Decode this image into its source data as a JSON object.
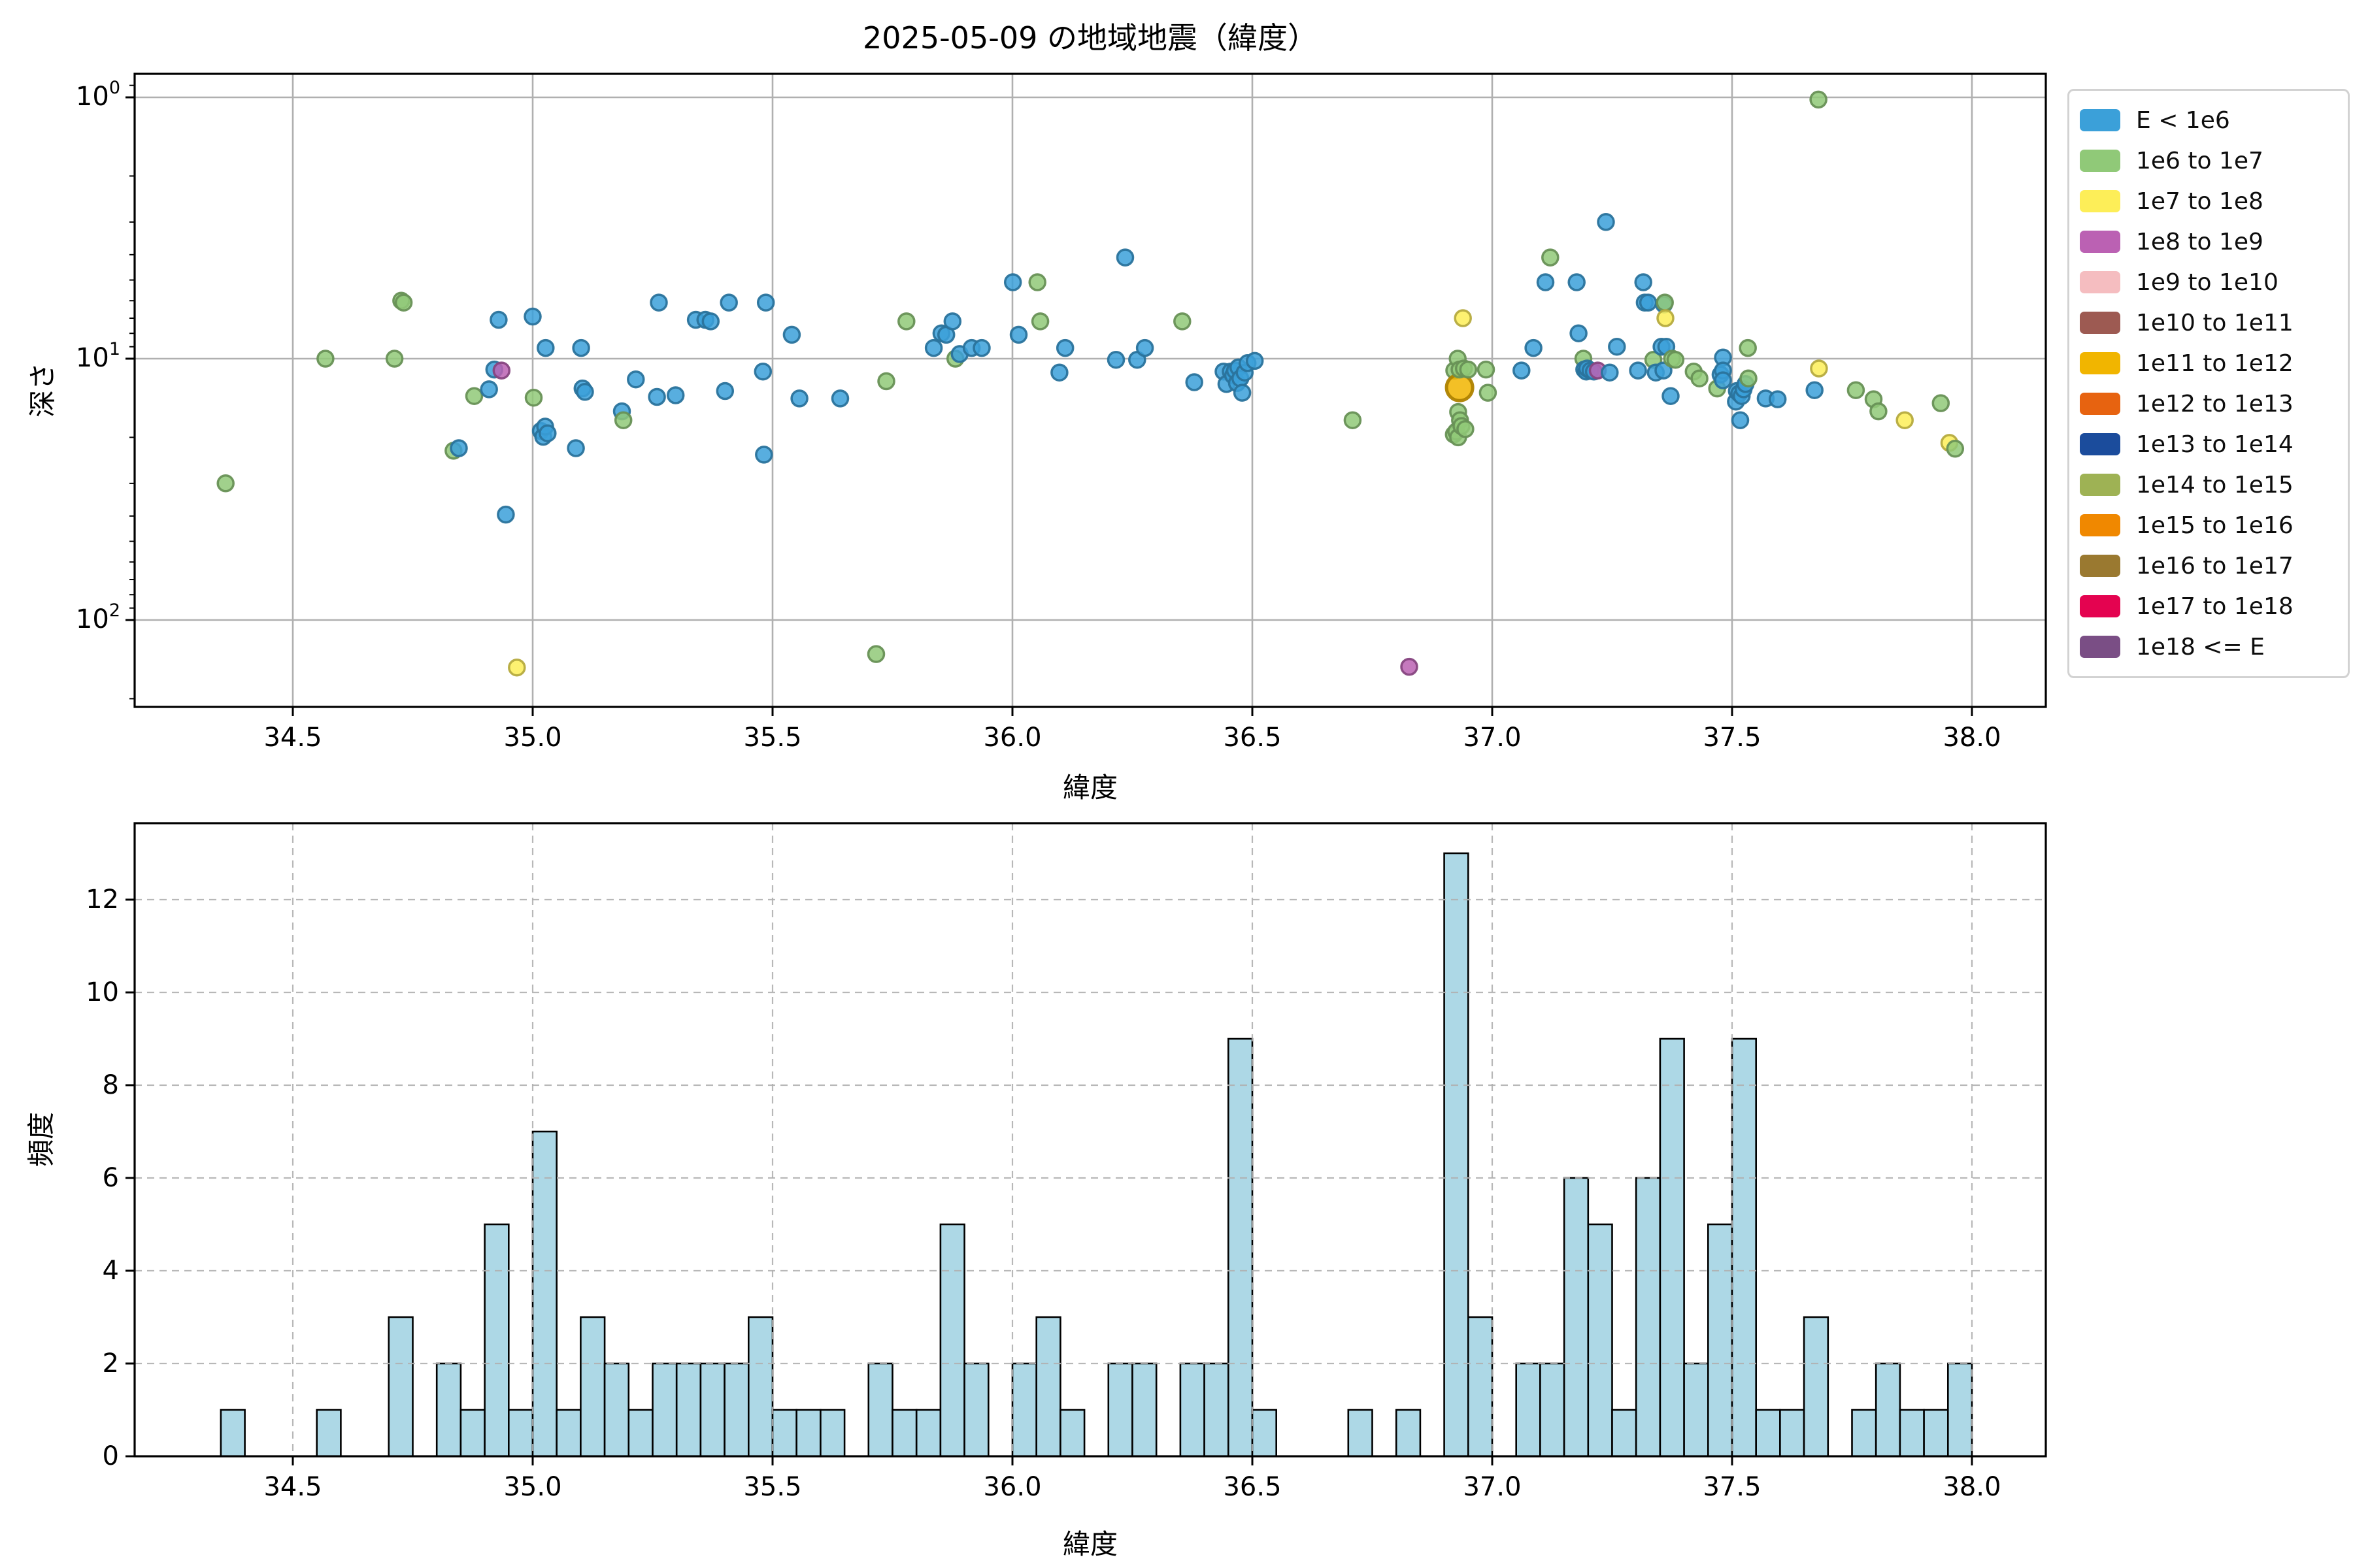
{
  "title": "2025-05-09 の地域地震（緯度）",
  "chart_data": [
    {
      "type": "scatter",
      "title": "2025-05-09 の地域地震（緯度）",
      "xlabel": "緯度",
      "ylabel": "深さ",
      "x_ticks": [
        34.5,
        35.0,
        35.5,
        36.0,
        36.5,
        37.0,
        37.5,
        38.0
      ],
      "xlim": [
        34.17,
        38.154
      ],
      "y_scale": "log",
      "y_inverted": true,
      "ylim": [
        0.813,
        215
      ],
      "y_ticks": [
        1,
        10,
        100
      ],
      "grid": "solid",
      "legend_position": "outside-upper-right",
      "legend": {
        "entries": [
          {
            "label": "E < 1e6",
            "color": "#3ba0d9"
          },
          {
            "label": "1e6 to 1e7",
            "color": "#90c978"
          },
          {
            "label": "1e7 to 1e8",
            "color": "#fdee58"
          },
          {
            "label": "1e8 to 1e9",
            "color": "#bb61b3"
          },
          {
            "label": "1e9 to 1e10",
            "color": "#f5bdc0"
          },
          {
            "label": "1e10 to 1e11",
            "color": "#9d5a52"
          },
          {
            "label": "1e11 to 1e12",
            "color": "#f1b500"
          },
          {
            "label": "1e12 to 1e13",
            "color": "#e76310"
          },
          {
            "label": "1e13 to 1e14",
            "color": "#1b4c9c"
          },
          {
            "label": "1e14 to 1e15",
            "color": "#9eb254"
          },
          {
            "label": "1e15 to 1e16",
            "color": "#f08800"
          },
          {
            "label": "1e16 to 1e17",
            "color": "#9a7930"
          },
          {
            "label": "1e17 to 1e18",
            "color": "#e40350"
          },
          {
            "label": "1e18 <= E",
            "color": "#7a4e85"
          }
        ]
      },
      "points_format": [
        "latitude",
        "depth_km",
        "energy_category_index"
      ],
      "points": [
        [
          34.36,
          30,
          1
        ],
        [
          34.568,
          10.0,
          1
        ],
        [
          34.712,
          10.0,
          1
        ],
        [
          34.726,
          6.0,
          1
        ],
        [
          34.731,
          6.1,
          1
        ],
        [
          34.835,
          22.5,
          1
        ],
        [
          34.846,
          22.0,
          0
        ],
        [
          34.878,
          13.9,
          1
        ],
        [
          34.909,
          13.1,
          0
        ],
        [
          34.92,
          11.0,
          0
        ],
        [
          34.935,
          11.1,
          3
        ],
        [
          34.929,
          7.1,
          0
        ],
        [
          34.944,
          39.5,
          0
        ],
        [
          34.967,
          152,
          2
        ],
        [
          35.0,
          6.9,
          0
        ],
        [
          35.002,
          14.1,
          1
        ],
        [
          35.017,
          18.9,
          0
        ],
        [
          35.022,
          19.9,
          0
        ],
        [
          35.026,
          18.2,
          0
        ],
        [
          35.031,
          19.3,
          0
        ],
        [
          35.027,
          9.1,
          0
        ],
        [
          35.09,
          22.0,
          0
        ],
        [
          35.101,
          9.1,
          0
        ],
        [
          35.104,
          13.0,
          0
        ],
        [
          35.109,
          13.4,
          0
        ],
        [
          35.186,
          15.9,
          0
        ],
        [
          35.189,
          17.2,
          1
        ],
        [
          35.215,
          12.0,
          0
        ],
        [
          35.259,
          14.0,
          0
        ],
        [
          35.263,
          6.1,
          0
        ],
        [
          35.298,
          13.8,
          0
        ],
        [
          35.34,
          7.1,
          0
        ],
        [
          35.36,
          7.1,
          0
        ],
        [
          35.371,
          7.2,
          0
        ],
        [
          35.401,
          13.3,
          0
        ],
        [
          35.409,
          6.1,
          0
        ],
        [
          35.48,
          11.2,
          0
        ],
        [
          35.482,
          23.3,
          0
        ],
        [
          35.486,
          6.1,
          0
        ],
        [
          35.54,
          8.1,
          0
        ],
        [
          35.556,
          14.2,
          0
        ],
        [
          35.641,
          14.2,
          0
        ],
        [
          35.716,
          135,
          1
        ],
        [
          35.737,
          12.2,
          1
        ],
        [
          35.779,
          7.2,
          1
        ],
        [
          35.836,
          9.1,
          0
        ],
        [
          35.852,
          8.0,
          0
        ],
        [
          35.862,
          8.1,
          0
        ],
        [
          35.875,
          7.2,
          0
        ],
        [
          35.881,
          10.0,
          1
        ],
        [
          35.89,
          9.6,
          0
        ],
        [
          35.915,
          9.1,
          0
        ],
        [
          35.936,
          9.1,
          0
        ],
        [
          36.001,
          5.1,
          0
        ],
        [
          36.013,
          8.1,
          0
        ],
        [
          36.052,
          5.1,
          1
        ],
        [
          36.058,
          7.2,
          1
        ],
        [
          36.098,
          11.3,
          0
        ],
        [
          36.11,
          9.1,
          0
        ],
        [
          36.216,
          10.1,
          0
        ],
        [
          36.235,
          4.1,
          0
        ],
        [
          36.26,
          10.1,
          0
        ],
        [
          36.276,
          9.1,
          0
        ],
        [
          36.354,
          7.2,
          1
        ],
        [
          36.379,
          12.3,
          0
        ],
        [
          36.44,
          11.2,
          0
        ],
        [
          36.446,
          12.5,
          0
        ],
        [
          36.455,
          11.2,
          0
        ],
        [
          36.46,
          11.6,
          0
        ],
        [
          36.464,
          11.1,
          0
        ],
        [
          36.468,
          12.4,
          0
        ],
        [
          36.471,
          10.8,
          0
        ],
        [
          36.475,
          11.9,
          0
        ],
        [
          36.479,
          13.5,
          0
        ],
        [
          36.484,
          11.3,
          0
        ],
        [
          36.49,
          10.4,
          0
        ],
        [
          36.505,
          10.2,
          0
        ],
        [
          36.709,
          17.2,
          1
        ],
        [
          36.827,
          151,
          3
        ],
        [
          36.92,
          19.5,
          1
        ],
        [
          36.921,
          11.1,
          1
        ],
        [
          36.925,
          19.0,
          1
        ],
        [
          36.928,
          10.0,
          1
        ],
        [
          36.929,
          16.0,
          1
        ],
        [
          36.929,
          20.0,
          1
        ],
        [
          36.932,
          12.9,
          6
        ],
        [
          36.932,
          11.0,
          1
        ],
        [
          36.933,
          17.2,
          1
        ],
        [
          36.936,
          18.1,
          1
        ],
        [
          36.939,
          7.0,
          2
        ],
        [
          36.941,
          10.9,
          1
        ],
        [
          36.944,
          18.6,
          1
        ],
        [
          36.95,
          11.0,
          1
        ],
        [
          36.987,
          11.0,
          1
        ],
        [
          36.991,
          13.5,
          1
        ],
        [
          37.061,
          11.1,
          0
        ],
        [
          37.086,
          9.1,
          0
        ],
        [
          37.111,
          5.1,
          0
        ],
        [
          37.121,
          4.1,
          1
        ],
        [
          37.176,
          5.1,
          0
        ],
        [
          37.18,
          8.0,
          0
        ],
        [
          37.19,
          10.0,
          1
        ],
        [
          37.192,
          11.0,
          0
        ],
        [
          37.196,
          11.2,
          0
        ],
        [
          37.198,
          10.9,
          0
        ],
        [
          37.205,
          11.1,
          0
        ],
        [
          37.212,
          11.2,
          0
        ],
        [
          37.22,
          11.1,
          3
        ],
        [
          37.237,
          3.0,
          0
        ],
        [
          37.245,
          11.3,
          0
        ],
        [
          37.26,
          9.0,
          0
        ],
        [
          37.304,
          11.1,
          0
        ],
        [
          37.315,
          5.1,
          0
        ],
        [
          37.318,
          6.1,
          0
        ],
        [
          37.325,
          6.1,
          0
        ],
        [
          37.336,
          10.1,
          1
        ],
        [
          37.341,
          11.3,
          0
        ],
        [
          37.353,
          9.0,
          0
        ],
        [
          37.357,
          11.1,
          0
        ],
        [
          37.358,
          6.2,
          0
        ],
        [
          37.36,
          6.1,
          1
        ],
        [
          37.361,
          7.0,
          2
        ],
        [
          37.363,
          9.0,
          0
        ],
        [
          37.372,
          13.9,
          0
        ],
        [
          37.375,
          10.0,
          1
        ],
        [
          37.382,
          10.1,
          1
        ],
        [
          37.42,
          11.2,
          1
        ],
        [
          37.432,
          11.9,
          1
        ],
        [
          37.469,
          13.0,
          1
        ],
        [
          37.476,
          11.5,
          0
        ],
        [
          37.481,
          9.9,
          0
        ],
        [
          37.481,
          11.1,
          0
        ],
        [
          37.481,
          12.1,
          0
        ],
        [
          37.508,
          14.6,
          0
        ],
        [
          37.51,
          13.3,
          0
        ],
        [
          37.515,
          13.6,
          0
        ],
        [
          37.517,
          17.2,
          0
        ],
        [
          37.52,
          13.9,
          0
        ],
        [
          37.524,
          13.1,
          0
        ],
        [
          37.528,
          12.5,
          0
        ],
        [
          37.533,
          9.1,
          1
        ],
        [
          37.534,
          11.9,
          1
        ],
        [
          37.57,
          14.2,
          0
        ],
        [
          37.595,
          14.3,
          0
        ],
        [
          37.672,
          13.2,
          0
        ],
        [
          37.681,
          10.9,
          2
        ],
        [
          37.68,
          1.02,
          1
        ],
        [
          37.758,
          13.2,
          1
        ],
        [
          37.795,
          14.3,
          1
        ],
        [
          37.805,
          15.9,
          1
        ],
        [
          37.86,
          17.2,
          2
        ],
        [
          37.935,
          14.8,
          1
        ],
        [
          37.953,
          21.0,
          2
        ],
        [
          37.965,
          22.1,
          1
        ]
      ]
    },
    {
      "type": "histogram",
      "xlabel": "緯度",
      "ylabel": "頻度",
      "x_ticks": [
        34.5,
        35.0,
        35.5,
        36.0,
        36.5,
        37.0,
        37.5,
        38.0
      ],
      "xlim": [
        34.17,
        38.154
      ],
      "y_ticks": [
        0,
        2,
        4,
        6,
        8,
        10,
        12
      ],
      "ylim": [
        0,
        13.65
      ],
      "grid": "dashed",
      "bar_color": "#add8e6",
      "bar_edge_color": "#000000",
      "bin_start": 34.35,
      "bin_width": 0.05,
      "counts": [
        1,
        0,
        0,
        0,
        1,
        0,
        0,
        3,
        0,
        2,
        1,
        5,
        1,
        7,
        1,
        3,
        2,
        1,
        2,
        2,
        2,
        2,
        3,
        1,
        1,
        1,
        0,
        2,
        1,
        1,
        5,
        2,
        0,
        2,
        3,
        1,
        0,
        2,
        2,
        0,
        2,
        2,
        9,
        1,
        0,
        0,
        0,
        1,
        0,
        1,
        0,
        13,
        3,
        0,
        2,
        2,
        6,
        5,
        1,
        6,
        9,
        2,
        5,
        9,
        1,
        1,
        3,
        0,
        1,
        2,
        1,
        1,
        2
      ]
    }
  ]
}
